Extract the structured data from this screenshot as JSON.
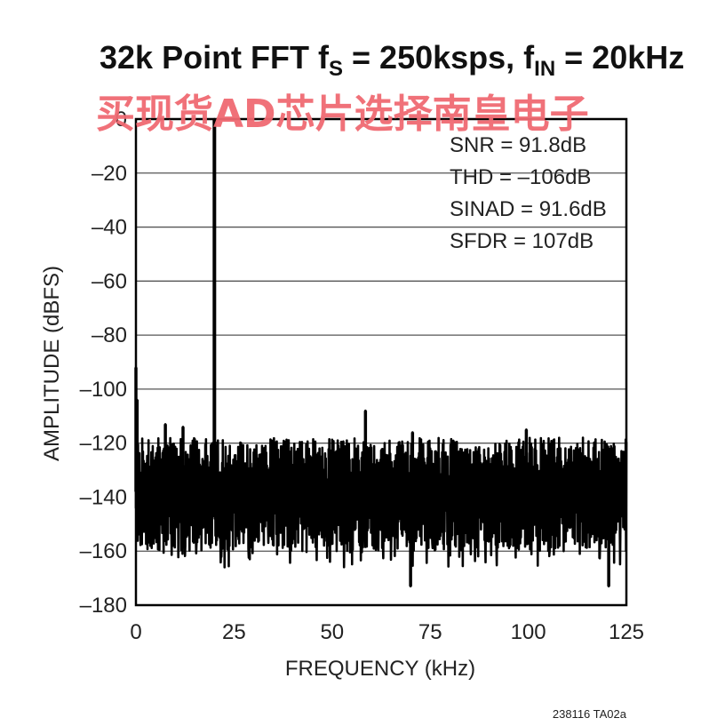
{
  "chart_data": {
    "type": "line",
    "title": {
      "main": "32k Point FFT f",
      "sub1": "S",
      "mid": " = 250ksps, f",
      "sub2": "IN",
      "end": " = 20kHz"
    },
    "watermark": "买现货AD芯片选择南皇电子",
    "xlabel": "FREQUENCY (kHz)",
    "ylabel": "AMPLITUDE (dBFS)",
    "xlim": [
      0,
      125
    ],
    "ylim": [
      -180,
      0
    ],
    "x_ticks": [
      0,
      25,
      50,
      75,
      100,
      125
    ],
    "x_tick_labels": [
      "0",
      "25",
      "50",
      "75",
      "100",
      "125"
    ],
    "y_ticks": [
      0,
      -20,
      -40,
      -60,
      -80,
      -100,
      -120,
      -140,
      -160,
      -180
    ],
    "y_tick_labels": [
      "0",
      "–20",
      "–40",
      "–60",
      "–80",
      "–100",
      "–120",
      "–140",
      "–160",
      "–180"
    ],
    "grid": "horizontal",
    "annotations": [
      "SNR = 91.8dB",
      "THD = –106dB",
      "SINAD = 91.6dB",
      "SFDR = 107dB"
    ],
    "figure_id": "238116 TA02a",
    "series": [
      {
        "noise_floor_min": -172,
        "noise_floor_max": -120,
        "noise_floor_typical": -138,
        "peaks": [
          {
            "x": 0.0,
            "y": -92
          },
          {
            "x": 0.3,
            "y": -104
          },
          {
            "x": 7.5,
            "y": -113
          },
          {
            "x": 12.0,
            "y": -114
          },
          {
            "x": 19.5,
            "y": -120
          },
          {
            "x": 20.0,
            "y": 0
          },
          {
            "x": 20.5,
            "y": -121
          },
          {
            "x": 58.5,
            "y": -108
          },
          {
            "x": 70.5,
            "y": -116
          },
          {
            "x": 70.0,
            "y": -173
          },
          {
            "x": 99.5,
            "y": -115
          },
          {
            "x": 120.5,
            "y": -173
          }
        ]
      }
    ],
    "colors": {
      "trace": "#000000",
      "grid": "#555555",
      "frame": "#000000",
      "watermark": "#f06a72"
    }
  }
}
